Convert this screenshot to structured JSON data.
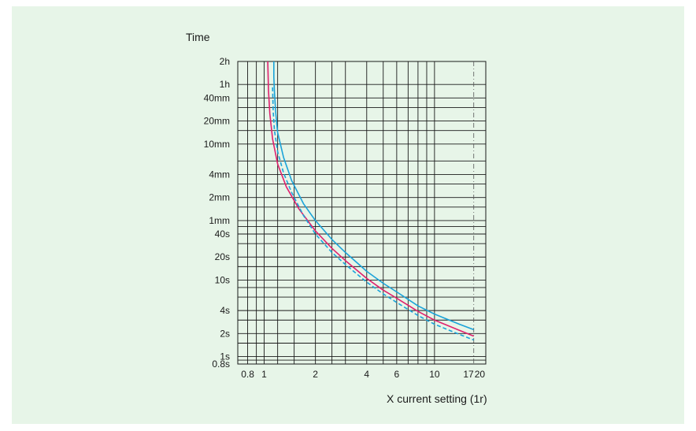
{
  "chart_data": {
    "type": "line",
    "title": "",
    "ylabel": "Time",
    "xlabel": "X current setting (1r)",
    "x_scale": "log",
    "y_scale": "log",
    "xlim": [
      0.7,
      20
    ],
    "ylim_seconds": [
      0.8,
      7200
    ],
    "x_ticks": [
      {
        "value": 0.8,
        "label": "0.8"
      },
      {
        "value": 1,
        "label": "1"
      },
      {
        "value": 2,
        "label": "2"
      },
      {
        "value": 4,
        "label": "4"
      },
      {
        "value": 6,
        "label": "6"
      },
      {
        "value": 10,
        "label": "10"
      },
      {
        "value": 17,
        "label": "17"
      },
      {
        "value": 20,
        "label": "20"
      }
    ],
    "y_ticks": [
      {
        "value": 7200,
        "label": "2h"
      },
      {
        "value": 3600,
        "label": "1h"
      },
      {
        "value": 2400,
        "label": "40mm"
      },
      {
        "value": 1200,
        "label": "20mm"
      },
      {
        "value": 600,
        "label": "10mm"
      },
      {
        "value": 240,
        "label": "4mm"
      },
      {
        "value": 120,
        "label": "2mm"
      },
      {
        "value": 60,
        "label": "1mm"
      },
      {
        "value": 40,
        "label": "40s"
      },
      {
        "value": 20,
        "label": "20s"
      },
      {
        "value": 10,
        "label": "10s"
      },
      {
        "value": 4,
        "label": "4s"
      },
      {
        "value": 2,
        "label": "2s"
      },
      {
        "value": 1,
        "label": "1s"
      },
      {
        "value": 0.8,
        "label": "0.8s"
      }
    ],
    "x_grid": [
      0.8,
      0.9,
      1,
      1.2,
      1.5,
      2,
      2.5,
      3,
      4,
      5,
      6,
      7,
      8,
      9,
      10,
      20
    ],
    "y_grid": [
      0.8,
      0.9,
      1,
      1.5,
      2,
      3,
      4,
      6,
      8,
      10,
      15,
      20,
      30,
      40,
      50,
      60,
      90,
      120,
      180,
      240,
      360,
      600,
      900,
      1200,
      1800,
      2400,
      3600,
      7200
    ],
    "reference_line": {
      "x": 17,
      "style": "dash-dot"
    },
    "grid": true,
    "legend": "none",
    "series": [
      {
        "color": "#e0206e",
        "style": "solid",
        "points": [
          [
            1.05,
            7200
          ],
          [
            1.06,
            3000
          ],
          [
            1.08,
            1500
          ],
          [
            1.12,
            700
          ],
          [
            1.2,
            330
          ],
          [
            1.35,
            165
          ],
          [
            1.6,
            85
          ],
          [
            2.0,
            44
          ],
          [
            2.5,
            26
          ],
          [
            3.0,
            18
          ],
          [
            4.0,
            10.5
          ],
          [
            5.0,
            7.4
          ],
          [
            6.0,
            5.8
          ],
          [
            8.0,
            3.9
          ],
          [
            10.0,
            3.0
          ],
          [
            14.0,
            2.2
          ],
          [
            17.0,
            1.85
          ]
        ]
      },
      {
        "color": "#1aa3d9",
        "style": "solid",
        "points": [
          [
            1.14,
            7200
          ],
          [
            1.14,
            4500
          ],
          [
            1.15,
            2800
          ],
          [
            1.17,
            1500
          ],
          [
            1.2,
            850
          ],
          [
            1.3,
            400
          ],
          [
            1.45,
            200
          ],
          [
            1.7,
            100
          ],
          [
            2.0,
            60
          ],
          [
            2.5,
            34
          ],
          [
            3.0,
            23
          ],
          [
            4.0,
            13
          ],
          [
            5.0,
            9.1
          ],
          [
            6.0,
            7.0
          ],
          [
            8.0,
            4.6
          ],
          [
            10.0,
            3.6
          ],
          [
            14.0,
            2.65
          ],
          [
            17.0,
            2.25
          ]
        ]
      },
      {
        "color": "#1aa3d9",
        "style": "dashed",
        "points": [
          [
            1.12,
            3300
          ],
          [
            1.13,
            1600
          ],
          [
            1.15,
            900
          ],
          [
            1.2,
            480
          ],
          [
            1.3,
            250
          ],
          [
            1.45,
            140
          ],
          [
            1.7,
            70
          ],
          [
            2.0,
            40
          ],
          [
            2.5,
            23
          ],
          [
            3.0,
            16
          ],
          [
            4.0,
            9.4
          ],
          [
            5.0,
            6.6
          ],
          [
            6.0,
            5.1
          ],
          [
            8.0,
            3.45
          ],
          [
            10.0,
            2.65
          ],
          [
            14.0,
            1.95
          ],
          [
            17.0,
            1.65
          ]
        ]
      }
    ]
  }
}
